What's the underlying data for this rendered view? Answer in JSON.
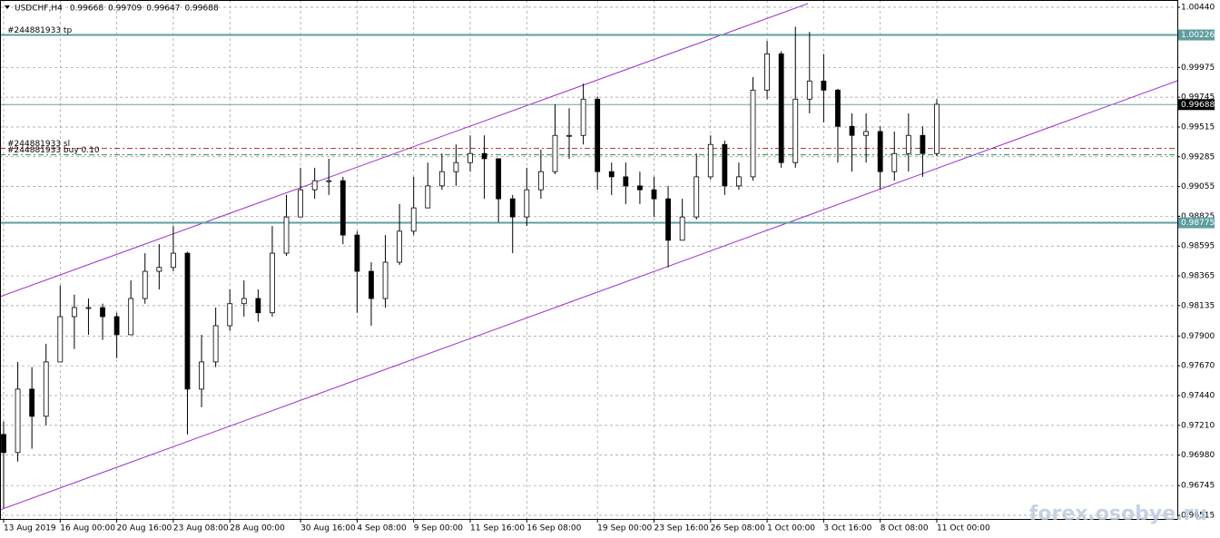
{
  "chart_data": {
    "type": "candlestick",
    "symbol": "USDCHF,H4",
    "quote": [
      0.99668,
      0.99709,
      0.99647,
      0.99688
    ],
    "watermark": "forex.osobye.ru",
    "categories": [
      "13 Aug 2019",
      null,
      null,
      null,
      "16 Aug 00:00",
      null,
      null,
      null,
      "20 Aug 16:00",
      null,
      null,
      null,
      "23 Aug 08:00",
      null,
      null,
      null,
      "28 Aug 00:00",
      null,
      null,
      null,
      null,
      "30 Aug 16:00",
      null,
      null,
      null,
      "4 Sep 08:00",
      null,
      null,
      null,
      "9 Sep 00:00",
      null,
      null,
      null,
      "11 Sep 16:00",
      null,
      null,
      null,
      "16 Sep 08:00",
      null,
      null,
      null,
      null,
      "19 Sep 00:00",
      null,
      null,
      null,
      "23 Sep 16:00",
      null,
      null,
      null,
      "26 Sep 08:00",
      null,
      null,
      null,
      "1 Oct 00:00",
      null,
      null,
      null,
      "3 Oct 16:00",
      null,
      null,
      null,
      "8 Oct 08:00",
      null,
      null,
      null,
      "11 Oct 00:00"
    ],
    "open": [
      0.9714,
      0.97,
      0.9749,
      0.9728,
      0.977,
      0.9805,
      0.9812,
      0.9812,
      0.9805,
      0.9791,
      0.9819,
      0.984,
      0.9843,
      0.9854,
      0.9749,
      0.977,
      0.9798,
      0.9815,
      0.9819,
      0.9808,
      0.9854,
      0.9882,
      0.9903,
      0.991,
      0.991,
      0.9868,
      0.984,
      0.9819,
      0.9847,
      0.9871,
      0.9889,
      0.9906,
      0.9917,
      0.9924,
      0.9931,
      0.9927,
      0.9896,
      0.9882,
      0.9903,
      0.9917,
      0.9945,
      0.9945,
      0.9973,
      0.9917,
      0.9913,
      0.9906,
      0.9903,
      0.9896,
      0.9864,
      0.9882,
      0.9913,
      0.9938,
      0.9906,
      0.9913,
      0.998,
      1.0008,
      0.9924,
      0.9973,
      0.9987,
      0.998,
      0.9952,
      0.9945,
      0.9948,
      0.9917,
      0.9931,
      0.9945,
      0.9931
    ],
    "high": [
      0.9724,
      0.977,
      0.9766,
      0.9784,
      0.9829,
      0.9822,
      0.9819,
      0.9815,
      0.9808,
      0.9833,
      0.9854,
      0.9861,
      0.9875,
      0.9855,
      0.9791,
      0.9812,
      0.9826,
      0.9833,
      0.9826,
      0.9875,
      0.9899,
      0.992,
      0.992,
      0.9927,
      0.9913,
      0.9871,
      0.9847,
      0.9868,
      0.9892,
      0.9913,
      0.9924,
      0.9931,
      0.9938,
      0.9945,
      0.9945,
      0.9927,
      0.9899,
      0.992,
      0.9934,
      0.9969,
      0.9966,
      0.9985,
      0.9975,
      0.9924,
      0.9924,
      0.9917,
      0.9913,
      0.9906,
      0.9896,
      0.9931,
      0.9945,
      0.9941,
      0.9924,
      0.999,
      1.0018,
      1.001,
      1.0029,
      1.0025,
      1.0008,
      0.9981,
      0.9962,
      0.9962,
      0.9952,
      0.9948,
      0.9962,
      0.9952,
      0.9973
    ],
    "low": [
      0.9657,
      0.9693,
      0.9703,
      0.9721,
      0.977,
      0.978,
      0.9791,
      0.9787,
      0.9773,
      0.9791,
      0.9815,
      0.9826,
      0.984,
      0.9714,
      0.9735,
      0.9766,
      0.9794,
      0.9805,
      0.9801,
      0.9805,
      0.9852,
      0.9882,
      0.9896,
      0.9899,
      0.9861,
      0.9808,
      0.9798,
      0.9812,
      0.9845,
      0.9868,
      0.9889,
      0.9903,
      0.9906,
      0.9917,
      0.9896,
      0.9878,
      0.9854,
      0.9875,
      0.9896,
      0.9915,
      0.9927,
      0.9938,
      0.9903,
      0.9899,
      0.9892,
      0.9892,
      0.9882,
      0.9843,
      0.9864,
      0.988,
      0.9911,
      0.9899,
      0.9903,
      0.991,
      0.9973,
      0.992,
      0.992,
      0.9962,
      0.9955,
      0.9924,
      0.9917,
      0.9924,
      0.9903,
      0.991,
      0.9917,
      0.9913,
      0.9929
    ],
    "close": [
      0.97,
      0.9749,
      0.9728,
      0.977,
      0.9805,
      0.9812,
      0.9812,
      0.9805,
      0.9791,
      0.9819,
      0.984,
      0.9843,
      0.9854,
      0.9749,
      0.977,
      0.9798,
      0.9815,
      0.9819,
      0.9808,
      0.9854,
      0.9882,
      0.9903,
      0.991,
      0.991,
      0.9868,
      0.984,
      0.9819,
      0.9847,
      0.9871,
      0.9889,
      0.9906,
      0.9917,
      0.9924,
      0.9931,
      0.9927,
      0.9896,
      0.9882,
      0.9903,
      0.9917,
      0.9945,
      0.9945,
      0.9973,
      0.9917,
      0.9913,
      0.9906,
      0.9903,
      0.9896,
      0.9864,
      0.9882,
      0.9913,
      0.9938,
      0.9906,
      0.9913,
      0.998,
      1.0008,
      0.9924,
      0.9973,
      0.9987,
      0.998,
      0.9952,
      0.9945,
      0.9948,
      0.9917,
      0.9931,
      0.9945,
      0.9931,
      0.9969
    ],
    "up_color": "#ffffff",
    "down_color": "#000000",
    "channel_color": "#9b30c8",
    "grid": true,
    "ylim": [
      0.96487,
      1.00496
    ],
    "yticks": [
      {
        "value": 1.0044,
        "label": "1.00440"
      },
      {
        "value": 0.99975,
        "label": "0.99975"
      },
      {
        "value": 0.99745,
        "label": "0.99745"
      },
      {
        "value": 0.99515,
        "label": "0.99515"
      },
      {
        "value": 0.99285,
        "label": "0.99285"
      },
      {
        "value": 0.99055,
        "label": "0.99055"
      },
      {
        "value": 0.98825,
        "label": "0.98825"
      },
      {
        "value": 0.98595,
        "label": "0.98595"
      },
      {
        "value": 0.98365,
        "label": "0.98365"
      },
      {
        "value": 0.98135,
        "label": "0.98135"
      },
      {
        "value": 0.979,
        "label": "0.97900"
      },
      {
        "value": 0.9767,
        "label": "0.97670"
      },
      {
        "value": 0.9744,
        "label": "0.97440"
      },
      {
        "value": 0.9721,
        "label": "0.97210"
      },
      {
        "value": 0.9698,
        "label": "0.96980"
      },
      {
        "value": 0.96745,
        "label": "0.96745"
      },
      {
        "value": 0.96515,
        "label": "0.96515"
      }
    ],
    "levels": [
      {
        "text": "#244881933 tp",
        "value": 1.00226,
        "color": "#5f9ea0",
        "dash": false,
        "width": 2
      },
      {
        "value": 0.98775,
        "color": "#5f9ea0",
        "dash": false,
        "width": 2
      },
      {
        "value": 0.99688,
        "color": "#6f9fa5",
        "dash": false,
        "width": 1,
        "current": true
      },
      {
        "text": "#244881933 sl",
        "value": 0.9935,
        "color": "#c0392b",
        "dash": true,
        "width": 1
      },
      {
        "text": "#244881933 buy 0.10",
        "value": 0.993,
        "color": "#2e8b57",
        "dash": true,
        "width": 1
      }
    ]
  }
}
